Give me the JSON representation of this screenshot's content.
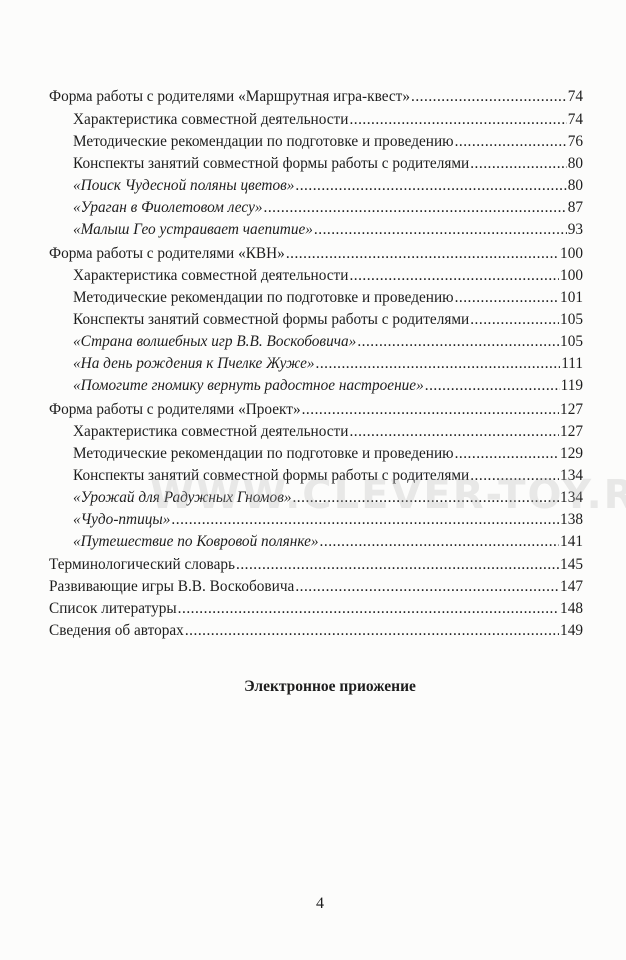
{
  "toc": [
    {
      "level": 1,
      "italic": false,
      "title": "Форма работы с родителями «Маршрутная игра-квест»",
      "page": "74"
    },
    {
      "level": 2,
      "italic": false,
      "title": "Характеристика совместной деятельности",
      "page": "74"
    },
    {
      "level": 2,
      "italic": false,
      "title": "Методические рекомендации по подготовке и проведению",
      "page": "76"
    },
    {
      "level": 2,
      "italic": false,
      "title": "Конспекты занятий совместной формы работы с родителями",
      "page": "80"
    },
    {
      "level": 2,
      "italic": true,
      "title": "«Поиск Чудесной поляны цветов»",
      "page": "80"
    },
    {
      "level": 2,
      "italic": true,
      "title": "«Ураган в Фиолетовом лесу»",
      "page": "87"
    },
    {
      "level": 2,
      "italic": true,
      "title": "«Малыш Гео устраивает чаепитие»",
      "page": "93"
    },
    {
      "level": 1,
      "italic": false,
      "title": "Форма работы с родителями «КВН»",
      "page": "100"
    },
    {
      "level": 2,
      "italic": false,
      "title": "Характеристика совместной деятельности",
      "page": "100"
    },
    {
      "level": 2,
      "italic": false,
      "title": "Методические рекомендации по подготовке и проведению",
      "page": "101"
    },
    {
      "level": 2,
      "italic": false,
      "title": "Конспекты занятий совместной формы работы с родителями",
      "page": "105"
    },
    {
      "level": 2,
      "italic": true,
      "title": "«Страна волшебных игр В.В. Воскобовича»",
      "page": "105"
    },
    {
      "level": 2,
      "italic": true,
      "title": "«На день рождения к Пчелке Жуже»",
      "page": "111"
    },
    {
      "level": 2,
      "italic": true,
      "title": "«Помогите гномику вернуть радостное настроение»",
      "page": "119"
    },
    {
      "level": 1,
      "italic": false,
      "title": "Форма работы с родителями «Проект»",
      "page": "127"
    },
    {
      "level": 2,
      "italic": false,
      "title": "Характеристика совместной деятельности",
      "page": "127"
    },
    {
      "level": 2,
      "italic": false,
      "title": "Методические рекомендации по подготовке и проведению",
      "page": "129"
    },
    {
      "level": 2,
      "italic": false,
      "title": "Конспекты занятий совместной формы работы с родителями",
      "page": "134"
    },
    {
      "level": 2,
      "italic": true,
      "title": "«Урожай для Радужных Гномов»",
      "page": "134"
    },
    {
      "level": 2,
      "italic": true,
      "title": "«Чудо-птицы»",
      "page": "138"
    },
    {
      "level": 2,
      "italic": true,
      "title": "«Путешествие по Ковровой полянке»",
      "page": "141"
    },
    {
      "level": 1,
      "italic": false,
      "title": "Терминологический словарь",
      "page": "145"
    },
    {
      "level": 1,
      "italic": false,
      "title": "Развивающие игры В.В. Воскобовича",
      "page": "147"
    },
    {
      "level": 1,
      "italic": false,
      "title": "Список литературы",
      "page": "148"
    },
    {
      "level": 1,
      "italic": false,
      "title": "Сведения об авторах",
      "page": "149"
    }
  ],
  "appendix_title": "Электронное приожение",
  "page_number": "4",
  "watermark": "WWW.CLEVER-TOY.RU"
}
